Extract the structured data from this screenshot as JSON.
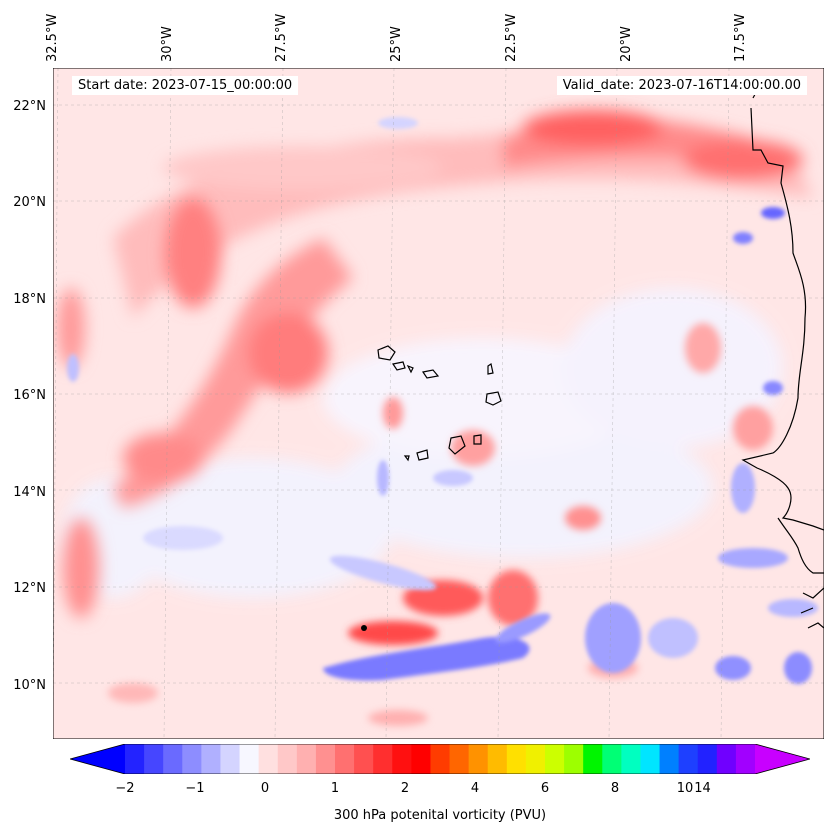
{
  "map": {
    "start_date": "Start date: 2023-07-15_00:00:00",
    "valid_date": "Valid_date: 2023-07-16T14:00:00.00",
    "lon_labels": [
      "32.5°W",
      "30°W",
      "27.5°W",
      "25°W",
      "22.5°W",
      "20°W",
      "17.5°W"
    ],
    "lat_labels": [
      "22°N",
      "20°N",
      "18°N",
      "16°N",
      "14°N",
      "12°N",
      "10°N"
    ],
    "lon_ticks_deg": [
      -32.5,
      -30,
      -27.5,
      -25,
      -22.5,
      -20,
      -17.5
    ],
    "lat_ticks_deg": [
      22,
      20,
      18,
      16,
      14,
      12,
      10
    ],
    "extent": {
      "lon_min": -32.5,
      "lon_max": -15.7,
      "lat_min": 8.9,
      "lat_max": 22.8
    },
    "projection": "PlateCarree",
    "gridlines": true,
    "coastlines": true,
    "field": "300 hPa potential vorticity",
    "features": [
      {
        "kind": "positive-band",
        "desc": "northern arc",
        "value_pvu": 1.2
      },
      {
        "kind": "positive-band",
        "desc": "diagonal west trough",
        "value_pvu": 1.3
      },
      {
        "kind": "negative-band",
        "desc": "southern wave",
        "value_pvu": -0.9
      },
      {
        "kind": "max",
        "desc": "peak near 11.2N 25.5W",
        "value_pvu": 3.0
      }
    ]
  },
  "colorbar": {
    "label": "300 hPa potenital vorticity (PVU)",
    "tick_labels": [
      "−2",
      "−1",
      "0",
      "1",
      "2",
      "4",
      "6",
      "8",
      "10",
      "14"
    ],
    "colors": [
      "#0000ff",
      "#2323ff",
      "#4646ff",
      "#6a6aff",
      "#8d8dff",
      "#b0b0ff",
      "#d4d4ff",
      "#f7f7ff",
      "#ffe0e0",
      "#ffc8c8",
      "#ffb0b0",
      "#ff9090",
      "#ff7070",
      "#ff5050",
      "#ff2f2f",
      "#ff1010",
      "#ff0000",
      "#ff3c00",
      "#ff6600",
      "#ff9200",
      "#ffbb00",
      "#ffe000",
      "#f0f000",
      "#ccff00",
      "#9dff00",
      "#00f500",
      "#00ff75",
      "#00ffc0",
      "#00e5ff",
      "#0080ff",
      "#1e40ff",
      "#2222ff",
      "#7000ff",
      "#a100ff",
      "#c800ff"
    ],
    "extend": "both"
  }
}
